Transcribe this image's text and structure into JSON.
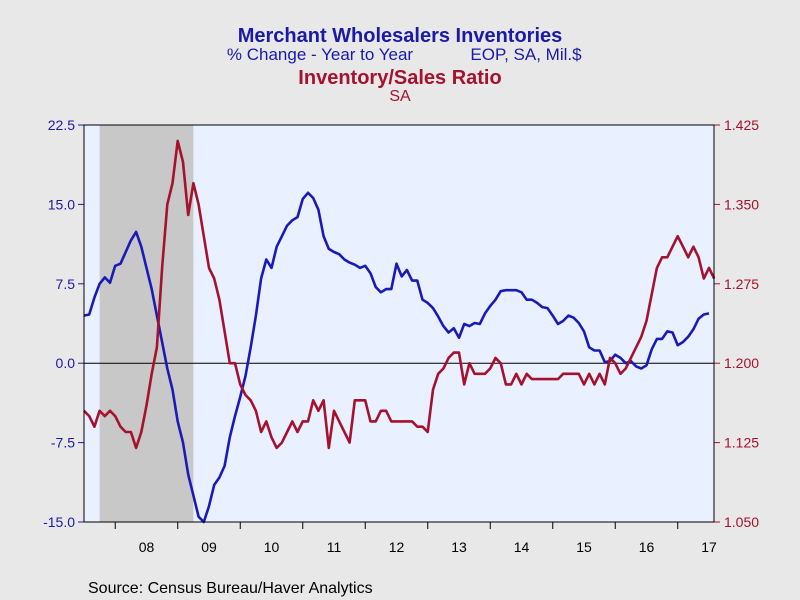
{
  "header": {
    "title_primary": "Merchant Wholesalers Inventories",
    "subtitle_primary_left": "% Change - Year to Year",
    "subtitle_primary_right": "EOP, SA, Mil.$",
    "title_secondary": "Inventory/Sales Ratio",
    "subtitle_secondary": "SA"
  },
  "footer": {
    "source": "Source:  Census Bureau/Haver Analytics"
  },
  "colors": {
    "background": "#e8e8e8",
    "plot_background": "#e9f0ff",
    "recession_shade": "#c8c8c8",
    "blue_series": "#1a1ab8",
    "red_series": "#a6112d",
    "zero_line": "#000000"
  },
  "chart_data": {
    "type": "line",
    "x_range": [
      2007.5,
      2017.58
    ],
    "x_tick_labels": [
      {
        "label": "08",
        "x": 2008.5
      },
      {
        "label": "09",
        "x": 2009.5
      },
      {
        "label": "10",
        "x": 2010.5
      },
      {
        "label": "11",
        "x": 2011.5
      },
      {
        "label": "12",
        "x": 2012.5
      },
      {
        "label": "13",
        "x": 2013.5
      },
      {
        "label": "14",
        "x": 2014.5
      },
      {
        "label": "15",
        "x": 2015.5
      },
      {
        "label": "16",
        "x": 2016.5
      },
      {
        "label": "17",
        "x": 2017.5
      }
    ],
    "y_left": {
      "range": [
        -15.0,
        22.5
      ],
      "ticks": [
        "22.5",
        "15.0",
        "7.5",
        "0.0",
        "-7.5",
        "-15.0"
      ]
    },
    "y_right": {
      "range": [
        1.05,
        1.425
      ],
      "ticks": [
        "1.425",
        "1.350",
        "1.275",
        "1.200",
        "1.125",
        "1.050"
      ]
    },
    "recession": {
      "start": 2007.75,
      "end": 2009.25
    },
    "grid": false,
    "series": [
      {
        "axis": "left",
        "start": 2007.5,
        "step": 0.0833333,
        "values": [
          4.5,
          4.6,
          6.2,
          7.5,
          8.1,
          7.6,
          9.2,
          9.4,
          10.5,
          11.6,
          12.4,
          11.0,
          9.0,
          7.0,
          4.5,
          2.0,
          -0.5,
          -2.5,
          -5.5,
          -7.5,
          -10.5,
          -12.5,
          -14.5,
          -15.0,
          -13.5,
          -11.5,
          -10.8,
          -9.7,
          -7.0,
          -5.0,
          -3.2,
          -1.2,
          1.5,
          4.5,
          8.0,
          9.8,
          9.0,
          11.0,
          12.0,
          13.0,
          13.5,
          13.8,
          15.5,
          16.1,
          15.6,
          14.5,
          12.0,
          10.8,
          10.5,
          10.3,
          9.8,
          9.5,
          9.3,
          9.0,
          9.2,
          8.5,
          7.2,
          6.7,
          7.0,
          7.0,
          9.4,
          8.2,
          8.8,
          7.8,
          7.8,
          6.0,
          5.7,
          5.2,
          4.4,
          3.5,
          2.9,
          3.3,
          2.4,
          3.7,
          3.5,
          3.8,
          3.7,
          4.7,
          5.4,
          6.0,
          6.8,
          6.9,
          6.9,
          6.9,
          6.7,
          6.0,
          6.0,
          5.7,
          5.3,
          5.2,
          4.5,
          3.7,
          4.0,
          4.5,
          4.3,
          3.8,
          3.0,
          1.5,
          1.2,
          1.2,
          0.1,
          0.2,
          0.8,
          0.5,
          0.0,
          0.2,
          -0.3,
          -0.5,
          -0.2,
          1.3,
          2.3,
          2.3,
          3.0,
          2.9,
          1.7,
          2.0,
          2.5,
          3.2,
          4.2,
          4.6,
          4.7
        ]
      },
      {
        "axis": "right",
        "start": 2007.5,
        "step": 0.0833333,
        "values": [
          1.155,
          1.15,
          1.14,
          1.155,
          1.15,
          1.155,
          1.15,
          1.14,
          1.135,
          1.135,
          1.12,
          1.135,
          1.16,
          1.19,
          1.215,
          1.29,
          1.35,
          1.37,
          1.41,
          1.39,
          1.34,
          1.37,
          1.35,
          1.32,
          1.29,
          1.28,
          1.26,
          1.23,
          1.2,
          1.2,
          1.18,
          1.17,
          1.165,
          1.155,
          1.135,
          1.145,
          1.13,
          1.12,
          1.125,
          1.135,
          1.145,
          1.135,
          1.145,
          1.145,
          1.165,
          1.155,
          1.165,
          1.12,
          1.155,
          1.145,
          1.135,
          1.125,
          1.165,
          1.165,
          1.165,
          1.145,
          1.145,
          1.155,
          1.155,
          1.145,
          1.145,
          1.145,
          1.145,
          1.145,
          1.14,
          1.14,
          1.135,
          1.175,
          1.19,
          1.195,
          1.205,
          1.21,
          1.21,
          1.18,
          1.2,
          1.19,
          1.19,
          1.19,
          1.195,
          1.205,
          1.2,
          1.18,
          1.18,
          1.19,
          1.18,
          1.19,
          1.185,
          1.185,
          1.185,
          1.185,
          1.185,
          1.185,
          1.19,
          1.19,
          1.19,
          1.19,
          1.18,
          1.19,
          1.18,
          1.19,
          1.18,
          1.205,
          1.2,
          1.19,
          1.195,
          1.205,
          1.215,
          1.225,
          1.24,
          1.265,
          1.29,
          1.3,
          1.3,
          1.31,
          1.32,
          1.31,
          1.3,
          1.31,
          1.3,
          1.28,
          1.29,
          1.28
        ]
      }
    ]
  }
}
